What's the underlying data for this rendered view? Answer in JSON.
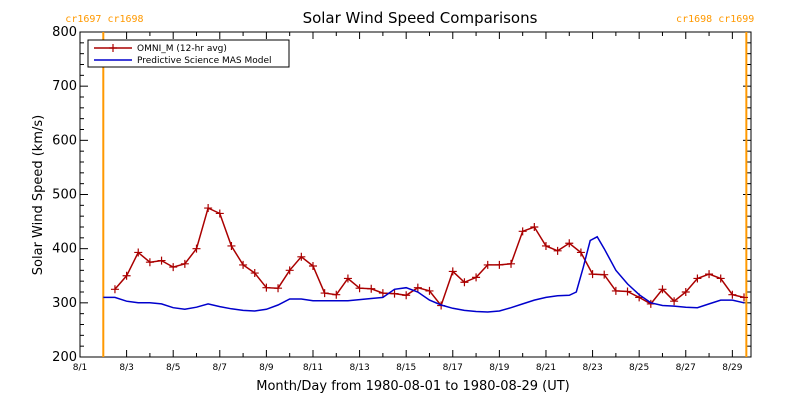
{
  "chart_data": {
    "type": "line",
    "title": "Solar Wind Speed Comparisons",
    "xlabel": "Month/Day from 1980-08-01 to 1980-08-29 (UT)",
    "ylabel": "Solar Wind Speed (km/s)",
    "xlim": [
      "1980-08-01",
      "1980-08-29.8"
    ],
    "ylim": [
      200,
      800
    ],
    "x_ticks": [
      {
        "label": "8/1",
        "date": "1980-08-01"
      },
      {
        "label": "8/3",
        "date": "1980-08-03"
      },
      {
        "label": "8/5",
        "date": "1980-08-05"
      },
      {
        "label": "8/7",
        "date": "1980-08-07"
      },
      {
        "label": "8/9",
        "date": "1980-08-09"
      },
      {
        "label": "8/11",
        "date": "1980-08-11"
      },
      {
        "label": "8/13",
        "date": "1980-08-13"
      },
      {
        "label": "8/15",
        "date": "1980-08-15"
      },
      {
        "label": "8/17",
        "date": "1980-08-17"
      },
      {
        "label": "8/19",
        "date": "1980-08-19"
      },
      {
        "label": "8/21",
        "date": "1980-08-21"
      },
      {
        "label": "8/23",
        "date": "1980-08-23"
      },
      {
        "label": "8/25",
        "date": "1980-08-25"
      },
      {
        "label": "8/27",
        "date": "1980-08-27"
      },
      {
        "label": "8/29",
        "date": "1980-08-29"
      }
    ],
    "y_ticks": [
      "200",
      "300",
      "400",
      "500",
      "600",
      "700",
      "800"
    ],
    "legend_position": "top-left",
    "carrington_markers": [
      {
        "date": "1980-08-02.0",
        "label": "cr1697 cr1698",
        "label_side": "left"
      },
      {
        "date": "1980-08-29.6",
        "label": "cr1698 cr1699",
        "label_side": "right"
      }
    ],
    "marker_color": "#ff9900",
    "series": [
      {
        "name": "OMNI_M (12-hr avg)",
        "color": "#aa0000",
        "marker": "+",
        "points": [
          [
            "1980-08-02.5",
            325
          ],
          [
            "1980-08-03.0",
            350
          ],
          [
            "1980-08-03.5",
            393
          ],
          [
            "1980-08-04.0",
            375
          ],
          [
            "1980-08-04.5",
            378
          ],
          [
            "1980-08-05.0",
            366
          ],
          [
            "1980-08-05.5",
            372
          ],
          [
            "1980-08-06.0",
            400
          ],
          [
            "1980-08-06.5",
            475
          ],
          [
            "1980-08-07.0",
            465
          ],
          [
            "1980-08-07.5",
            405
          ],
          [
            "1980-08-08.0",
            370
          ],
          [
            "1980-08-08.5",
            355
          ],
          [
            "1980-08-09.0",
            328
          ],
          [
            "1980-08-09.5",
            327
          ],
          [
            "1980-08-10.0",
            360
          ],
          [
            "1980-08-10.5",
            385
          ],
          [
            "1980-08-11.0",
            368
          ],
          [
            "1980-08-11.5",
            318
          ],
          [
            "1980-08-12.0",
            315
          ],
          [
            "1980-08-12.5",
            345
          ],
          [
            "1980-08-13.0",
            327
          ],
          [
            "1980-08-13.5",
            326
          ],
          [
            "1980-08-14.0",
            318
          ],
          [
            "1980-08-14.5",
            317
          ],
          [
            "1980-08-15.0",
            314
          ],
          [
            "1980-08-15.5",
            328
          ],
          [
            "1980-08-16.0",
            322
          ],
          [
            "1980-08-16.5",
            295
          ],
          [
            "1980-08-17.0",
            358
          ],
          [
            "1980-08-17.5",
            338
          ],
          [
            "1980-08-18.0",
            347
          ],
          [
            "1980-08-18.5",
            370
          ],
          [
            "1980-08-19.0",
            370
          ],
          [
            "1980-08-19.5",
            372
          ],
          [
            "1980-08-20.0",
            432
          ],
          [
            "1980-08-20.5",
            440
          ],
          [
            "1980-08-21.0",
            405
          ],
          [
            "1980-08-21.5",
            396
          ],
          [
            "1980-08-22.0",
            410
          ],
          [
            "1980-08-22.5",
            393
          ],
          [
            "1980-08-23.0",
            353
          ],
          [
            "1980-08-23.5",
            352
          ],
          [
            "1980-08-24.0",
            322
          ],
          [
            "1980-08-24.5",
            321
          ],
          [
            "1980-08-25.0",
            310
          ],
          [
            "1980-08-25.5",
            298
          ],
          [
            "1980-08-26.0",
            325
          ],
          [
            "1980-08-26.5",
            303
          ],
          [
            "1980-08-27.0",
            320
          ],
          [
            "1980-08-27.5",
            345
          ],
          [
            "1980-08-28.0",
            353
          ],
          [
            "1980-08-28.5",
            345
          ],
          [
            "1980-08-29.0",
            315
          ],
          [
            "1980-08-29.5",
            310
          ]
        ]
      },
      {
        "name": "Predictive Science MAS Model",
        "color": "#0000cc",
        "marker": "none",
        "points": [
          [
            "1980-08-02.0",
            310
          ],
          [
            "1980-08-02.5",
            310
          ],
          [
            "1980-08-03.0",
            303
          ],
          [
            "1980-08-03.5",
            300
          ],
          [
            "1980-08-04.0",
            300
          ],
          [
            "1980-08-04.5",
            298
          ],
          [
            "1980-08-05.0",
            291
          ],
          [
            "1980-08-05.5",
            288
          ],
          [
            "1980-08-06.0",
            292
          ],
          [
            "1980-08-06.5",
            298
          ],
          [
            "1980-08-07.0",
            293
          ],
          [
            "1980-08-07.5",
            289
          ],
          [
            "1980-08-08.0",
            286
          ],
          [
            "1980-08-08.5",
            285
          ],
          [
            "1980-08-09.0",
            288
          ],
          [
            "1980-08-09.5",
            296
          ],
          [
            "1980-08-10.0",
            307
          ],
          [
            "1980-08-10.5",
            307
          ],
          [
            "1980-08-11.0",
            304
          ],
          [
            "1980-08-11.5",
            304
          ],
          [
            "1980-08-12.0",
            304
          ],
          [
            "1980-08-12.5",
            304
          ],
          [
            "1980-08-13.0",
            306
          ],
          [
            "1980-08-13.5",
            308
          ],
          [
            "1980-08-14.0",
            310
          ],
          [
            "1980-08-14.5",
            325
          ],
          [
            "1980-08-15.0",
            328
          ],
          [
            "1980-08-15.5",
            320
          ],
          [
            "1980-08-16.0",
            305
          ],
          [
            "1980-08-16.5",
            296
          ],
          [
            "1980-08-17.0",
            290
          ],
          [
            "1980-08-17.5",
            286
          ],
          [
            "1980-08-18.0",
            284
          ],
          [
            "1980-08-18.5",
            283
          ],
          [
            "1980-08-19.0",
            285
          ],
          [
            "1980-08-19.5",
            291
          ],
          [
            "1980-08-20.0",
            298
          ],
          [
            "1980-08-20.5",
            305
          ],
          [
            "1980-08-21.0",
            310
          ],
          [
            "1980-08-21.5",
            313
          ],
          [
            "1980-08-22.0",
            314
          ],
          [
            "1980-08-22.3",
            320
          ],
          [
            "1980-08-22.6",
            365
          ],
          [
            "1980-08-22.9",
            415
          ],
          [
            "1980-08-23.2",
            422
          ],
          [
            "1980-08-23.5",
            400
          ],
          [
            "1980-08-24.0",
            360
          ],
          [
            "1980-08-24.5",
            335
          ],
          [
            "1980-08-25.0",
            315
          ],
          [
            "1980-08-25.5",
            300
          ],
          [
            "1980-08-26.0",
            295
          ],
          [
            "1980-08-26.5",
            294
          ],
          [
            "1980-08-27.0",
            292
          ],
          [
            "1980-08-27.5",
            291
          ],
          [
            "1980-08-28.0",
            298
          ],
          [
            "1980-08-28.5",
            305
          ],
          [
            "1980-08-29.0",
            305
          ],
          [
            "1980-08-29.5",
            300
          ]
        ]
      }
    ]
  }
}
